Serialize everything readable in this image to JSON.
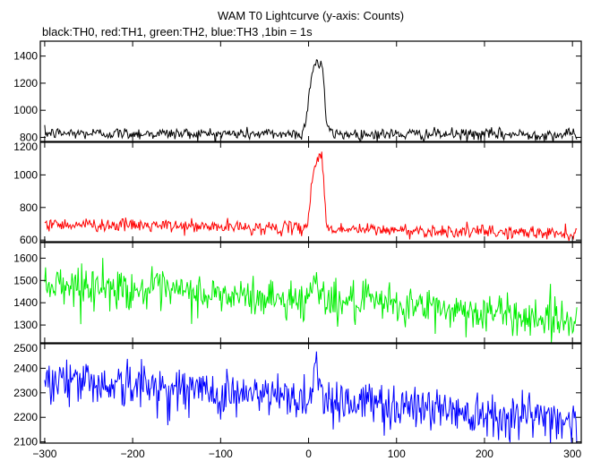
{
  "chart_data": {
    "type": "line",
    "title": "WAM T0 Lightcurve (y-axis: Counts)",
    "subtitle": "black:TH0, red:TH1, green:TH2, blue:TH3 ,1bin = 1s",
    "xlim": [
      -305,
      310
    ],
    "xticks": [
      -300,
      -200,
      -100,
      0,
      100,
      200,
      300
    ],
    "x_start": -300,
    "x_end": 305,
    "x_step": 1,
    "grid": false,
    "panels": [
      {
        "color": "#000000",
        "ylim": [
          770,
          1510
        ],
        "yticks": [
          800,
          1000,
          1200,
          1400
        ],
        "baseline": [
          [
            -300,
            830
          ],
          [
            305,
            820
          ]
        ],
        "noise": 22,
        "peaks": [
          {
            "center": 3,
            "width": 4,
            "height": 290
          },
          {
            "center": 11,
            "width": 5,
            "height": 470
          },
          {
            "center": 16,
            "width": 2,
            "height": 200
          }
        ]
      },
      {
        "color": "#ff0000",
        "ylim": [
          590,
          1200
        ],
        "yticks": [
          600,
          800,
          1000,
          1200
        ],
        "baseline": [
          [
            -300,
            700
          ],
          [
            305,
            640
          ]
        ],
        "noise": 20,
        "peaks": [
          {
            "center": 4,
            "width": 3,
            "height": 200
          },
          {
            "center": 11,
            "width": 4,
            "height": 420
          },
          {
            "center": 16,
            "width": 2,
            "height": 200
          }
        ]
      },
      {
        "color": "#00ee00",
        "ylim": [
          1220,
          1670
        ],
        "yticks": [
          1300,
          1400,
          1500,
          1600
        ],
        "baseline": [
          [
            -300,
            1490
          ],
          [
            -100,
            1430
          ],
          [
            100,
            1390
          ],
          [
            305,
            1320
          ]
        ],
        "noise": 45,
        "peaks": [
          {
            "center": 9,
            "width": 4,
            "height": 120
          }
        ]
      },
      {
        "color": "#0000ff",
        "ylim": [
          2095,
          2500
        ],
        "yticks": [
          2100,
          2200,
          2300,
          2400,
          2500
        ],
        "baseline": [
          [
            -300,
            2360
          ],
          [
            -100,
            2300
          ],
          [
            100,
            2250
          ],
          [
            305,
            2190
          ]
        ],
        "noise": 48,
        "peaks": [
          {
            "center": 9,
            "width": 4,
            "height": 130
          }
        ]
      }
    ]
  }
}
